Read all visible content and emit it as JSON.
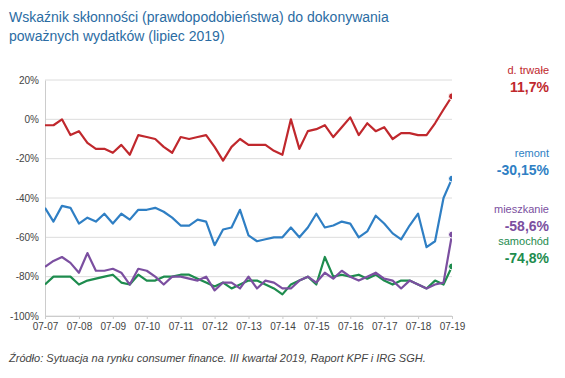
{
  "chart_data": {
    "type": "line",
    "title": "Wskaźnik skłonności (prawdopodobieństwa) do dokonywania poważnych wydatków (lipiec 2019)",
    "source": "Źródło: Sytuacja na rynku consumer finance. III kwartał 2019, Raport KPF i IRG SGH.",
    "categories": [
      "07-07",
      null,
      null,
      null,
      "07-08",
      null,
      null,
      null,
      "07-09",
      null,
      null,
      null,
      "07-10",
      null,
      null,
      null,
      "07-11",
      null,
      null,
      null,
      "07-12",
      null,
      null,
      null,
      "07-13",
      null,
      null,
      null,
      "07-14",
      null,
      null,
      null,
      "07-15",
      null,
      null,
      null,
      "07-16",
      null,
      null,
      null,
      "07-17",
      null,
      null,
      null,
      "07-18",
      null,
      null,
      null,
      "07-19"
    ],
    "ylim": [
      -100,
      20
    ],
    "yticks": [
      {
        "value": 20,
        "label": "20%"
      },
      {
        "value": 0,
        "label": "0%"
      },
      {
        "value": -20,
        "label": "-20%"
      },
      {
        "value": -40,
        "label": "-40%"
      },
      {
        "value": -60,
        "label": "-60%"
      },
      {
        "value": -80,
        "label": "-80%"
      },
      {
        "value": -100,
        "label": "-100%"
      }
    ],
    "grid": true,
    "series": [
      {
        "name": "d. trwałe",
        "color": "#c0282d",
        "values": [
          -3,
          -3,
          0,
          -8,
          -6,
          -12,
          -15,
          -15,
          -17,
          -13,
          -18,
          -8,
          -9,
          -10,
          -14,
          -17,
          -9,
          -10,
          -9,
          -8,
          -14,
          -21,
          -14,
          -10,
          -13,
          -13,
          -13,
          -16,
          -18,
          0,
          -15,
          -6,
          -5,
          -3,
          -9,
          -4,
          1,
          -8,
          -2,
          -6,
          -4,
          -10,
          -7,
          -7,
          -8,
          -8,
          -2,
          5,
          11.7
        ],
        "value_labels": [
          null,
          null,
          null,
          null,
          null,
          null,
          null,
          null,
          null,
          null,
          null,
          null,
          null,
          null,
          null,
          null,
          null,
          null,
          null,
          null,
          null,
          null,
          null,
          null,
          null,
          null,
          null,
          null,
          null,
          null,
          null,
          null,
          null,
          null,
          null,
          null,
          null,
          null,
          null,
          null,
          null,
          null,
          null,
          null,
          null,
          null,
          null,
          null,
          "11,7%"
        ]
      },
      {
        "name": "remont",
        "color": "#2f7fc4",
        "values": [
          -45,
          -52,
          -44,
          -45,
          -53,
          -50,
          -52,
          -48,
          -53,
          -48,
          -51,
          -46,
          -46,
          -45,
          -47,
          -50,
          -54,
          -54,
          -51,
          -52,
          -64,
          -56,
          -55,
          -46,
          -59,
          -62,
          -61,
          -60,
          -60,
          -55,
          -60,
          -55,
          -48,
          -55,
          -54,
          -52,
          -53,
          -60,
          -57,
          -49,
          -53,
          -58,
          -61,
          -54,
          -48,
          -65,
          -62,
          -40,
          -30.15
        ],
        "value_labels": [
          null,
          null,
          null,
          null,
          null,
          null,
          null,
          null,
          null,
          null,
          null,
          null,
          null,
          null,
          null,
          null,
          null,
          null,
          null,
          null,
          null,
          null,
          null,
          null,
          null,
          null,
          null,
          null,
          null,
          null,
          null,
          null,
          null,
          null,
          null,
          null,
          null,
          null,
          null,
          null,
          null,
          null,
          null,
          null,
          null,
          null,
          null,
          null,
          "-30,15%"
        ]
      },
      {
        "name": "mieszkanie",
        "color": "#7b4fa0",
        "values": [
          -75,
          -72,
          -70,
          -73,
          -78,
          -68,
          -77,
          -77,
          -76,
          -78,
          -84,
          -76,
          -77,
          -80,
          -84,
          -80,
          -80,
          -81,
          -82,
          -80,
          -87,
          -83,
          -83,
          -86,
          -80,
          -86,
          -82,
          -83,
          -86,
          -86,
          -82,
          -80,
          -83,
          -78,
          -81,
          -77,
          -80,
          -82,
          -80,
          -78,
          -81,
          -82,
          -86,
          -82,
          -84,
          -86,
          -84,
          -83,
          -58.6
        ],
        "value_labels": [
          null,
          null,
          null,
          null,
          null,
          null,
          null,
          null,
          null,
          null,
          null,
          null,
          null,
          null,
          null,
          null,
          null,
          null,
          null,
          null,
          null,
          null,
          null,
          null,
          null,
          null,
          null,
          null,
          null,
          null,
          null,
          null,
          null,
          null,
          null,
          null,
          null,
          null,
          null,
          null,
          null,
          null,
          null,
          null,
          null,
          null,
          null,
          null,
          "-58,6%"
        ]
      },
      {
        "name": "samochód",
        "color": "#1e8c4e",
        "values": [
          -84,
          -80,
          -80,
          -80,
          -84,
          -82,
          -81,
          -80,
          -79,
          -83,
          -84,
          -79,
          -82,
          -82,
          -80,
          -80,
          -79,
          -79,
          -81,
          -83,
          -85,
          -83,
          -86,
          -84,
          -82,
          -82,
          -84,
          -86,
          -89,
          -84,
          -82,
          -80,
          -84,
          -70,
          -80,
          -79,
          -80,
          -79,
          -81,
          -79,
          -82,
          -84,
          -82,
          -82,
          -84,
          -86,
          -82,
          -84,
          -74.8
        ],
        "value_labels": [
          null,
          null,
          null,
          null,
          null,
          null,
          null,
          null,
          null,
          null,
          null,
          null,
          null,
          null,
          null,
          null,
          null,
          null,
          null,
          null,
          null,
          null,
          null,
          null,
          null,
          null,
          null,
          null,
          null,
          null,
          null,
          null,
          null,
          null,
          null,
          null,
          null,
          null,
          null,
          null,
          null,
          null,
          null,
          null,
          null,
          null,
          null,
          null,
          "-74,8%"
        ]
      }
    ]
  }
}
